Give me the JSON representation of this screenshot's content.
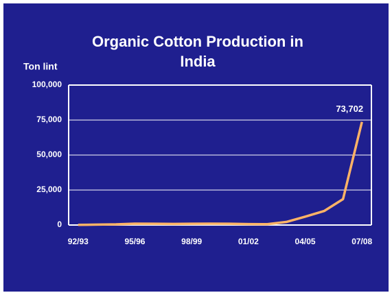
{
  "chart_data": {
    "type": "line",
    "title": "Organic Cotton Production in India",
    "y_label": "Ton lint",
    "categories": [
      "92/93",
      null,
      null,
      "95/96",
      null,
      null,
      "98/99",
      null,
      null,
      "01/02",
      null,
      null,
      "04/05",
      null,
      null,
      "07/08"
    ],
    "series": [
      {
        "color": "#ffb366",
        "values": [
          100,
          300,
          500,
          1000,
          900,
          800,
          900,
          1000,
          900,
          700,
          600,
          2200,
          6000,
          10000,
          18500,
          73702
        ],
        "value_labels": [
          null,
          null,
          null,
          null,
          null,
          null,
          null,
          null,
          null,
          null,
          null,
          null,
          null,
          null,
          null,
          "73,702"
        ]
      }
    ],
    "ylim": [
      0,
      100000
    ],
    "yticks": [
      0,
      {
        "value": 25000,
        "label": "25,000"
      },
      {
        "value": 50000,
        "label": "50,000"
      },
      {
        "value": 75000,
        "label": "75,000"
      },
      {
        "value": 100000,
        "label": "100,000"
      }
    ],
    "grid": true
  }
}
